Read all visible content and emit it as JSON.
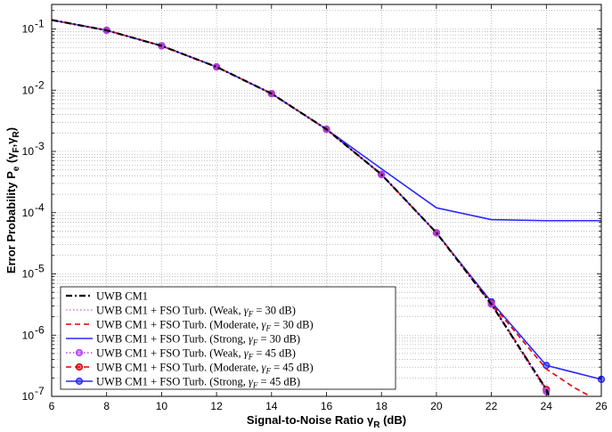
{
  "chart_data": {
    "type": "line",
    "title": "",
    "xlabel": "Signal-to-Noise Ratio",
    "xlabel_symbol": "γ",
    "xlabel_sub": "R",
    "xlabel_unit": "(dB)",
    "ylabel": "Error Probability P",
    "ylabel_sub": "e",
    "ylabel_args": "(γ",
    "ylabel_args_sub1": "F",
    "ylabel_args_sep": ",γ",
    "ylabel_args_sub2": "R",
    "ylabel_args_end": ")",
    "xlim": [
      6,
      26
    ],
    "ylim_log10": [
      -7,
      -0.6
    ],
    "yscale": "log",
    "grid": true,
    "x_ticks": [
      6,
      8,
      10,
      12,
      14,
      16,
      18,
      20,
      22,
      24,
      26
    ],
    "y_ticks_exp": [
      -1,
      -2,
      -3,
      -4,
      -5,
      -6,
      -7
    ],
    "y_tick_base": "10",
    "legend_position": "bottom-left",
    "series": [
      {
        "name": "UWB CM1",
        "label": "UWB CM1",
        "color": "#000000",
        "dash": "dashdot",
        "marker": "none",
        "x": [
          6,
          8,
          10,
          12,
          14,
          16,
          18,
          20,
          22,
          24,
          24.1
        ],
        "y": [
          0.14,
          0.095,
          0.053,
          0.024,
          0.0088,
          0.0023,
          0.00042,
          4.7e-05,
          3.2e-06,
          1.3e-07,
          1e-07
        ]
      },
      {
        "name": "UWB CM1 + FSO Turb. (Weak, γF = 30 dB)",
        "label": "UWB CM1 + FSO Turb. (Weak,",
        "gamma_text": "γ",
        "gamma_sub": "F",
        "value_text": "= 30 dB)",
        "color": "#e070e0",
        "dash": "dotted",
        "marker": "none",
        "x": [
          6,
          8,
          10,
          12,
          14,
          16,
          18,
          20,
          22,
          24
        ],
        "y": [
          0.14,
          0.095,
          0.053,
          0.024,
          0.0088,
          0.0023,
          0.00042,
          4.7e-05,
          3.2e-06,
          1.2e-07
        ]
      },
      {
        "name": "UWB CM1 + FSO Turb. (Moderate, γF = 30 dB)",
        "label": "UWB CM1 + FSO Turb. (Moderate,",
        "gamma_text": "γ",
        "gamma_sub": "F",
        "value_text": "= 30 dB)",
        "color": "#e00000",
        "dash": "dashed",
        "marker": "none",
        "x": [
          6,
          8,
          10,
          12,
          14,
          16,
          18,
          20,
          22,
          24,
          25,
          25.6
        ],
        "y": [
          0.14,
          0.095,
          0.053,
          0.024,
          0.0088,
          0.0023,
          0.00042,
          4.7e-05,
          3.3e-06,
          2.8e-07,
          1.4e-07,
          1e-07
        ]
      },
      {
        "name": "UWB CM1 + FSO Turb. (Strong, γF = 30 dB)",
        "label": "UWB CM1 + FSO Turb. (Strong,",
        "gamma_text": "γ",
        "gamma_sub": "F",
        "value_text": "= 30 dB)",
        "color": "#2828ff",
        "dash": "solid",
        "marker": "none",
        "x": [
          6,
          8,
          10,
          12,
          14,
          16,
          18,
          20,
          22,
          24,
          26
        ],
        "y": [
          0.14,
          0.095,
          0.053,
          0.024,
          0.0088,
          0.0023,
          0.00052,
          0.00012,
          7.7e-05,
          7.4e-05,
          7.4e-05
        ]
      },
      {
        "name": "UWB CM1 + FSO Turb. (Weak, γF = 45 dB)",
        "label": "UWB CM1 + FSO Turb. (Weak,",
        "gamma_text": "γ",
        "gamma_sub": "F",
        "value_text": "= 45 dB)",
        "color": "#b040f0",
        "dash": "dotted",
        "marker": "circle",
        "x": [
          6,
          8,
          10,
          12,
          14,
          16,
          18,
          20,
          22,
          24
        ],
        "y": [
          0.14,
          0.095,
          0.053,
          0.024,
          0.0088,
          0.0023,
          0.00042,
          4.7e-05,
          3.2e-06,
          1.2e-07
        ]
      },
      {
        "name": "UWB CM1 + FSO Turb. (Moderate, γF = 45 dB)",
        "label": "UWB CM1 + FSO Turb. (Moderate,",
        "gamma_text": "γ",
        "gamma_sub": "F",
        "value_text": "= 45 dB)",
        "color": "#e00000",
        "dash": "dashed",
        "marker": "circle",
        "x": [
          6,
          8,
          10,
          12,
          14,
          16,
          18,
          20,
          22,
          24
        ],
        "y": [
          0.14,
          0.095,
          0.053,
          0.024,
          0.0088,
          0.0023,
          0.00042,
          4.7e-05,
          3.3e-06,
          1.3e-07
        ]
      },
      {
        "name": "UWB CM1 + FSO Turb. (Strong, γF = 45 dB)",
        "label": "UWB CM1 + FSO Turb. (Strong,",
        "gamma_text": "γ",
        "gamma_sub": "F",
        "value_text": "= 45 dB)",
        "color": "#2828ff",
        "dash": "solid",
        "marker": "circle",
        "x": [
          6,
          8,
          10,
          12,
          14,
          16,
          18,
          20,
          22,
          24,
          26
        ],
        "y": [
          0.14,
          0.095,
          0.053,
          0.024,
          0.0088,
          0.0023,
          0.00042,
          4.7e-05,
          3.5e-06,
          3.2e-07,
          1.9e-07
        ]
      }
    ]
  }
}
